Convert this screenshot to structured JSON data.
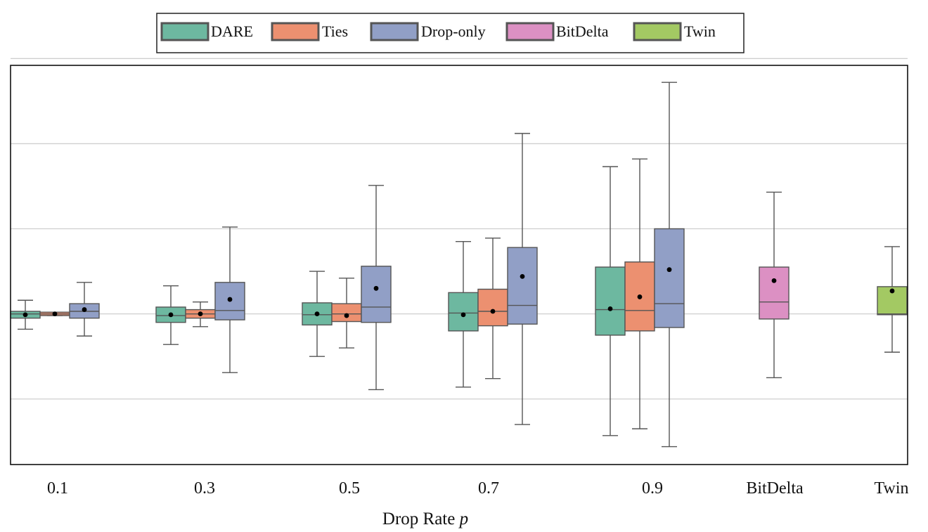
{
  "chart_data": {
    "type": "box",
    "title": "",
    "xlabel": "Drop Rate",
    "xlabel_var": "p",
    "ylabel": "",
    "y_ticks_labeled": false,
    "y_gridlines": [
      -1,
      1,
      2,
      3
    ],
    "ylim": [
      -1.77,
      2.92
    ],
    "grid": "horizontal",
    "legend": {
      "placement": "top-center",
      "boxed": true
    },
    "categories": [
      "0.1",
      "0.3",
      "0.5",
      "0.7",
      "0.9",
      "BitDelta",
      "Twin"
    ],
    "series": [
      {
        "name": "DARE",
        "color": "#6db8a0",
        "boxes": [
          {
            "category": "0.1",
            "whisker_low": -0.18,
            "q1": -0.05,
            "median": 0.0,
            "q3": 0.03,
            "whisker_high": 0.16,
            "mean": -0.01
          },
          {
            "category": "0.3",
            "whisker_low": -0.36,
            "q1": -0.1,
            "median": -0.02,
            "q3": 0.08,
            "whisker_high": 0.33,
            "mean": -0.01
          },
          {
            "category": "0.5",
            "whisker_low": -0.5,
            "q1": -0.13,
            "median": -0.01,
            "q3": 0.13,
            "whisker_high": 0.5,
            "mean": 0.0
          },
          {
            "category": "0.7",
            "whisker_low": -0.86,
            "q1": -0.2,
            "median": 0.01,
            "q3": 0.25,
            "whisker_high": 0.85,
            "mean": -0.01
          },
          {
            "category": "0.9",
            "whisker_low": -1.43,
            "q1": -0.25,
            "median": 0.05,
            "q3": 0.55,
            "whisker_high": 1.73,
            "mean": 0.06
          }
        ]
      },
      {
        "name": "Ties",
        "color": "#ec9070",
        "boxes": [
          {
            "category": "0.1",
            "whisker_low": -0.02,
            "q1": -0.02,
            "median": 0.0,
            "q3": 0.02,
            "whisker_high": 0.02,
            "mean": 0.0
          },
          {
            "category": "0.3",
            "whisker_low": -0.15,
            "q1": -0.05,
            "median": 0.0,
            "q3": 0.05,
            "whisker_high": 0.14,
            "mean": 0.0
          },
          {
            "category": "0.5",
            "whisker_low": -0.4,
            "q1": -0.09,
            "median": 0.0,
            "q3": 0.12,
            "whisker_high": 0.42,
            "mean": -0.02
          },
          {
            "category": "0.7",
            "whisker_low": -0.76,
            "q1": -0.14,
            "median": 0.03,
            "q3": 0.29,
            "whisker_high": 0.89,
            "mean": 0.03
          },
          {
            "category": "0.9",
            "whisker_low": -1.35,
            "q1": -0.2,
            "median": 0.04,
            "q3": 0.61,
            "whisker_high": 1.82,
            "mean": 0.2
          }
        ]
      },
      {
        "name": "Drop-only",
        "color": "#919fc6",
        "boxes": [
          {
            "category": "0.1",
            "whisker_low": -0.26,
            "q1": -0.05,
            "median": 0.03,
            "q3": 0.12,
            "whisker_high": 0.37,
            "mean": 0.05
          },
          {
            "category": "0.3",
            "whisker_low": -0.69,
            "q1": -0.07,
            "median": 0.04,
            "q3": 0.37,
            "whisker_high": 1.02,
            "mean": 0.17
          },
          {
            "category": "0.5",
            "whisker_low": -0.89,
            "q1": -0.1,
            "median": 0.08,
            "q3": 0.56,
            "whisker_high": 1.51,
            "mean": 0.3
          },
          {
            "category": "0.7",
            "whisker_low": -1.3,
            "q1": -0.12,
            "median": 0.1,
            "q3": 0.78,
            "whisker_high": 2.12,
            "mean": 0.44
          },
          {
            "category": "0.9",
            "whisker_low": -1.56,
            "q1": -0.16,
            "median": 0.12,
            "q3": 1.0,
            "whisker_high": 2.72,
            "mean": 0.52
          }
        ]
      },
      {
        "name": "BitDelta",
        "color": "#dc90c3",
        "boxes": [
          {
            "category": "BitDelta",
            "whisker_low": -0.75,
            "q1": -0.06,
            "median": 0.14,
            "q3": 0.55,
            "whisker_high": 1.43,
            "mean": 0.39
          }
        ]
      },
      {
        "name": "Twin",
        "color": "#a3c963",
        "boxes": [
          {
            "category": "Twin",
            "whisker_low": -0.45,
            "q1": -0.01,
            "median": 0.0,
            "q3": 0.32,
            "whisker_high": 0.79,
            "mean": 0.27
          }
        ]
      }
    ]
  }
}
